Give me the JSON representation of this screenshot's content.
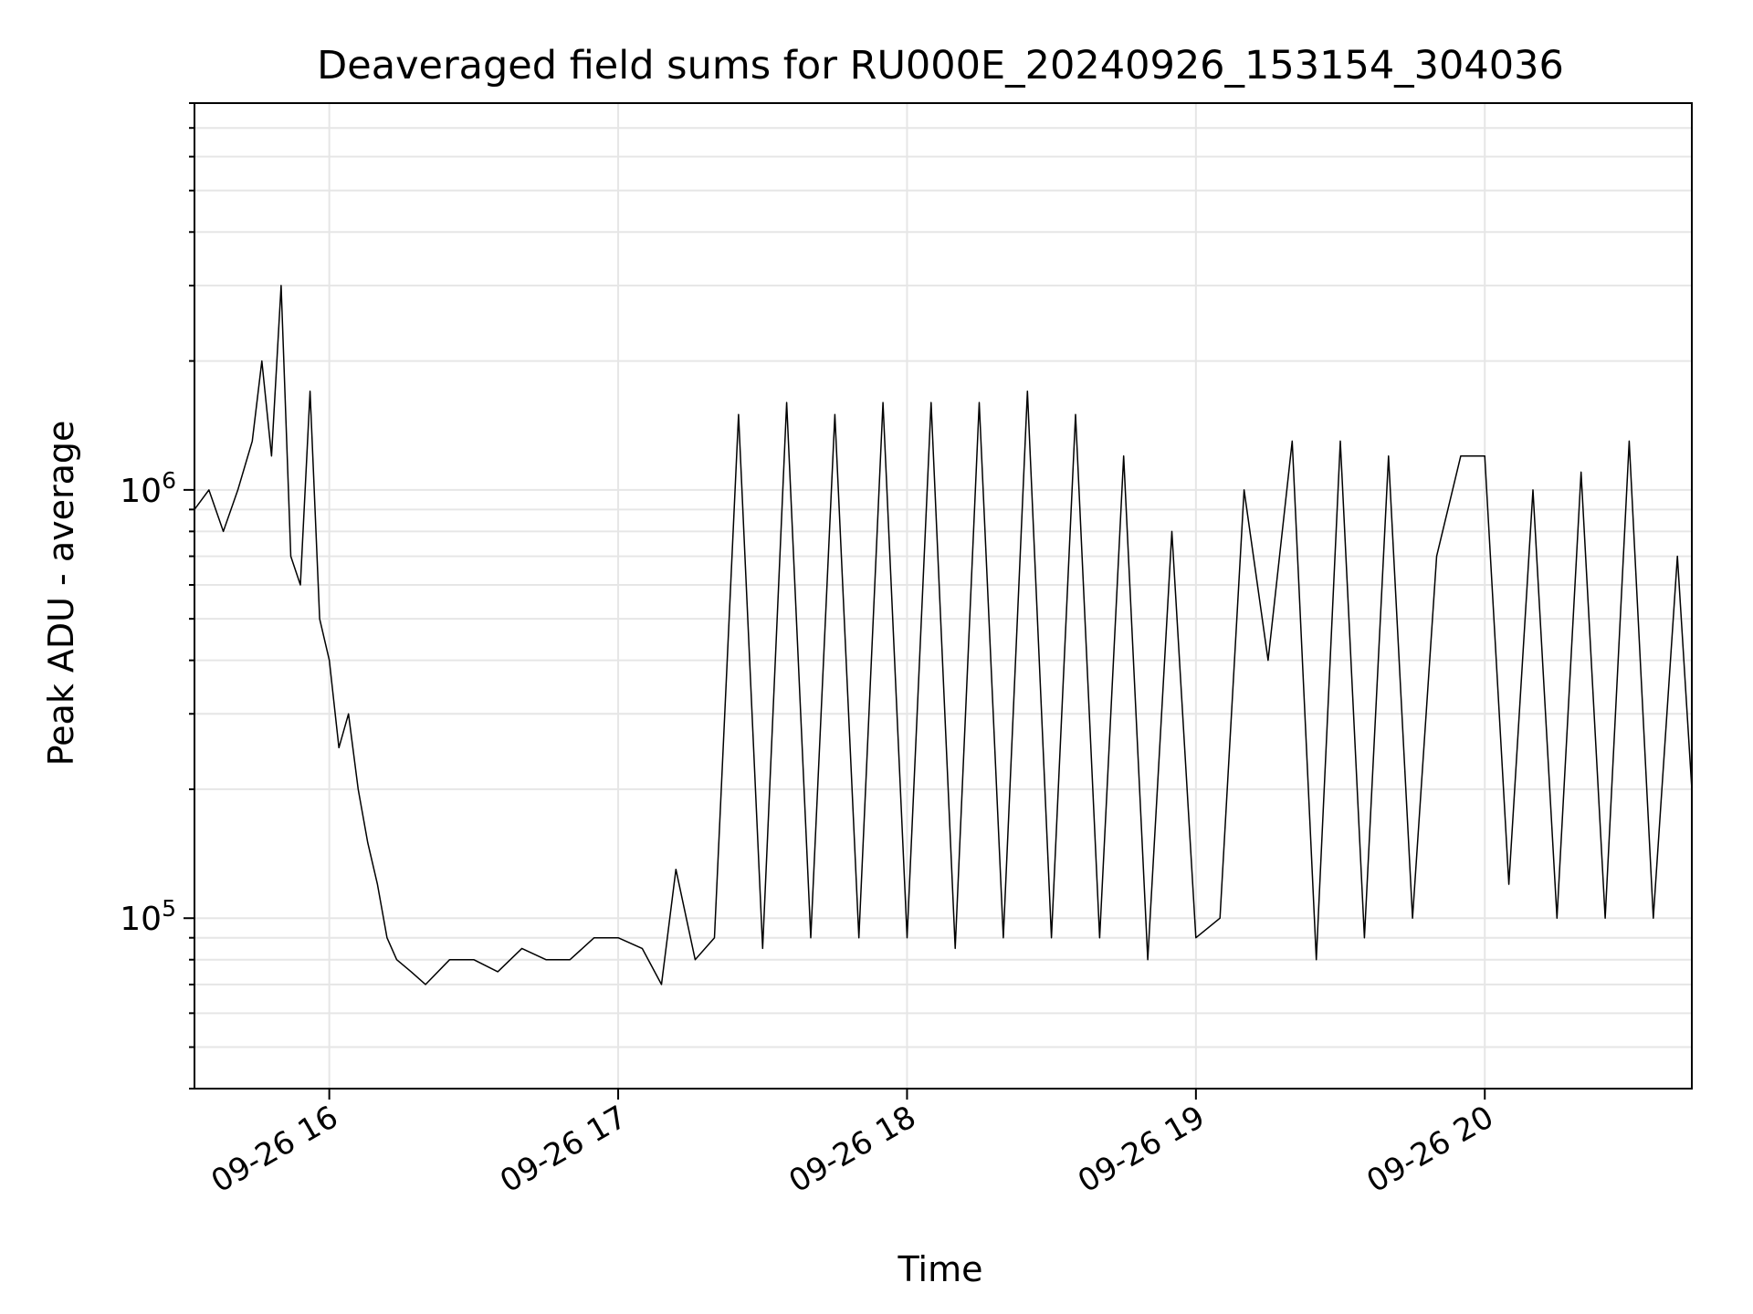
{
  "chart_data": {
    "type": "line",
    "title": "Deaveraged field sums for RU000E_20240926_153154_304036",
    "xlabel": "Time",
    "ylabel": "Peak ADU - average",
    "x_axis_type": "datetime",
    "y_scale": "log",
    "xlim": [
      "2024-09-26 15:32",
      "2024-09-26 20:43"
    ],
    "ylim": [
      40000,
      8000000
    ],
    "xticks": [
      {
        "value": "2024-09-26 16:00",
        "label": "09-26 16"
      },
      {
        "value": "2024-09-26 17:00",
        "label": "09-26 17"
      },
      {
        "value": "2024-09-26 18:00",
        "label": "09-26 18"
      },
      {
        "value": "2024-09-26 19:00",
        "label": "09-26 19"
      },
      {
        "value": "2024-09-26 20:00",
        "label": "09-26 20"
      }
    ],
    "yticks": [
      {
        "value": 100000,
        "base": "10",
        "exp": "5"
      },
      {
        "value": 1000000,
        "base": "10",
        "exp": "6"
      }
    ],
    "grid": true,
    "line_color": "#000000",
    "series": [
      {
        "x": [
          "2024-09-26 15:32",
          "2024-09-26 15:35",
          "2024-09-26 15:38",
          "2024-09-26 15:41",
          "2024-09-26 15:44",
          "2024-09-26 15:46",
          "2024-09-26 15:48",
          "2024-09-26 15:50",
          "2024-09-26 15:52",
          "2024-09-26 15:54",
          "2024-09-26 15:56",
          "2024-09-26 15:58",
          "2024-09-26 16:00",
          "2024-09-26 16:02",
          "2024-09-26 16:04",
          "2024-09-26 16:06",
          "2024-09-26 16:08",
          "2024-09-26 16:10",
          "2024-09-26 16:12",
          "2024-09-26 16:14",
          "2024-09-26 16:17",
          "2024-09-26 16:20",
          "2024-09-26 16:25",
          "2024-09-26 16:30",
          "2024-09-26 16:35",
          "2024-09-26 16:40",
          "2024-09-26 16:45",
          "2024-09-26 16:50",
          "2024-09-26 16:55",
          "2024-09-26 17:00",
          "2024-09-26 17:05",
          "2024-09-26 17:09",
          "2024-09-26 17:12",
          "2024-09-26 17:16",
          "2024-09-26 17:20",
          "2024-09-26 17:25",
          "2024-09-26 17:30",
          "2024-09-26 17:35",
          "2024-09-26 17:40",
          "2024-09-26 17:45",
          "2024-09-26 17:50",
          "2024-09-26 17:55",
          "2024-09-26 18:00",
          "2024-09-26 18:05",
          "2024-09-26 18:10",
          "2024-09-26 18:15",
          "2024-09-26 18:20",
          "2024-09-26 18:25",
          "2024-09-26 18:30",
          "2024-09-26 18:35",
          "2024-09-26 18:40",
          "2024-09-26 18:45",
          "2024-09-26 18:50",
          "2024-09-26 18:55",
          "2024-09-26 19:00",
          "2024-09-26 19:05",
          "2024-09-26 19:10",
          "2024-09-26 19:15",
          "2024-09-26 19:20",
          "2024-09-26 19:25",
          "2024-09-26 19:30",
          "2024-09-26 19:35",
          "2024-09-26 19:40",
          "2024-09-26 19:45",
          "2024-09-26 19:50",
          "2024-09-26 19:55",
          "2024-09-26 20:00",
          "2024-09-26 20:05",
          "2024-09-26 20:10",
          "2024-09-26 20:15",
          "2024-09-26 20:20",
          "2024-09-26 20:25",
          "2024-09-26 20:30",
          "2024-09-26 20:35",
          "2024-09-26 20:40",
          "2024-09-26 20:43"
        ],
        "y": [
          900000,
          1000000,
          800000,
          1000000,
          1300000,
          2000000,
          1200000,
          3000000,
          700000,
          600000,
          1700000,
          500000,
          400000,
          250000,
          300000,
          200000,
          150000,
          120000,
          90000,
          80000,
          75000,
          70000,
          80000,
          80000,
          75000,
          85000,
          80000,
          80000,
          90000,
          90000,
          85000,
          70000,
          130000,
          80000,
          90000,
          1500000,
          85000,
          1600000,
          90000,
          1500000,
          90000,
          1600000,
          90000,
          1600000,
          85000,
          1600000,
          90000,
          1700000,
          90000,
          1500000,
          90000,
          1200000,
          80000,
          800000,
          90000,
          100000,
          1000000,
          400000,
          1300000,
          80000,
          1300000,
          90000,
          1200000,
          100000,
          700000,
          1200000,
          1200000,
          120000,
          1000000,
          100000,
          1100000,
          100000,
          1300000,
          100000,
          700000,
          200000
        ]
      }
    ]
  }
}
